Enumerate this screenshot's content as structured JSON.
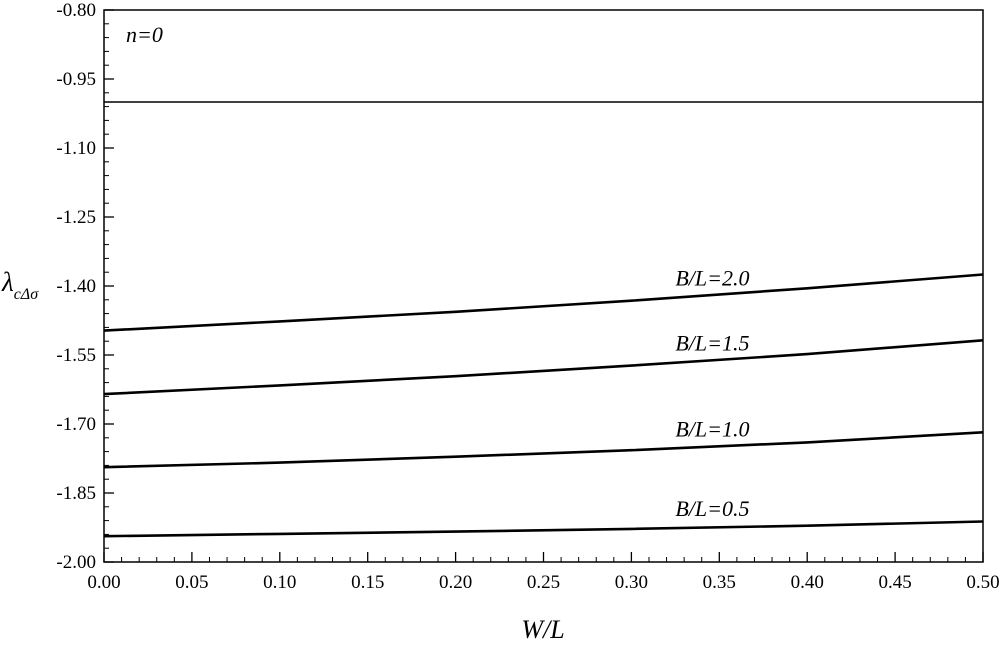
{
  "chart_data": {
    "type": "line",
    "xlabel": "W/L",
    "ylabel": "λcΔσ",
    "ylabel_main": "λ",
    "ylabel_sub": "cΔσ",
    "xlim": [
      0.0,
      0.5
    ],
    "ylim": [
      -2.0,
      -0.8
    ],
    "x_ticks": [
      "0.00",
      "0.05",
      "0.10",
      "0.15",
      "0.20",
      "0.25",
      "0.30",
      "0.35",
      "0.40",
      "0.45",
      "0.50"
    ],
    "y_ticks": [
      "-0.80",
      "-0.95",
      "-1.10",
      "-1.25",
      "-1.40",
      "-1.55",
      "-1.70",
      "-1.85",
      "-2.00"
    ],
    "grid": false,
    "annotations": [
      "n=0"
    ],
    "series": [
      {
        "name": "",
        "x": [
          0.0,
          0.5
        ],
        "y": [
          -1.0,
          -1.0
        ],
        "stroke_width": 1.5
      },
      {
        "name": "B/L=2.0",
        "x": [
          0.0,
          0.1,
          0.2,
          0.3,
          0.4,
          0.5
        ],
        "y": [
          -1.497,
          -1.477,
          -1.456,
          -1.432,
          -1.405,
          -1.375
        ],
        "stroke_width": 2.6
      },
      {
        "name": "B/L=1.5",
        "x": [
          0.0,
          0.1,
          0.2,
          0.3,
          0.4,
          0.5
        ],
        "y": [
          -1.635,
          -1.616,
          -1.596,
          -1.573,
          -1.548,
          -1.518
        ],
        "stroke_width": 2.6
      },
      {
        "name": "B/L=1.0",
        "x": [
          0.0,
          0.1,
          0.2,
          0.3,
          0.4,
          0.5
        ],
        "y": [
          -1.794,
          -1.784,
          -1.771,
          -1.757,
          -1.74,
          -1.718
        ],
        "stroke_width": 2.6
      },
      {
        "name": "B/L=0.5",
        "x": [
          0.0,
          0.1,
          0.2,
          0.3,
          0.4,
          0.5
        ],
        "y": [
          -1.944,
          -1.939,
          -1.934,
          -1.928,
          -1.921,
          -1.912
        ],
        "stroke_width": 2.6
      }
    ]
  }
}
